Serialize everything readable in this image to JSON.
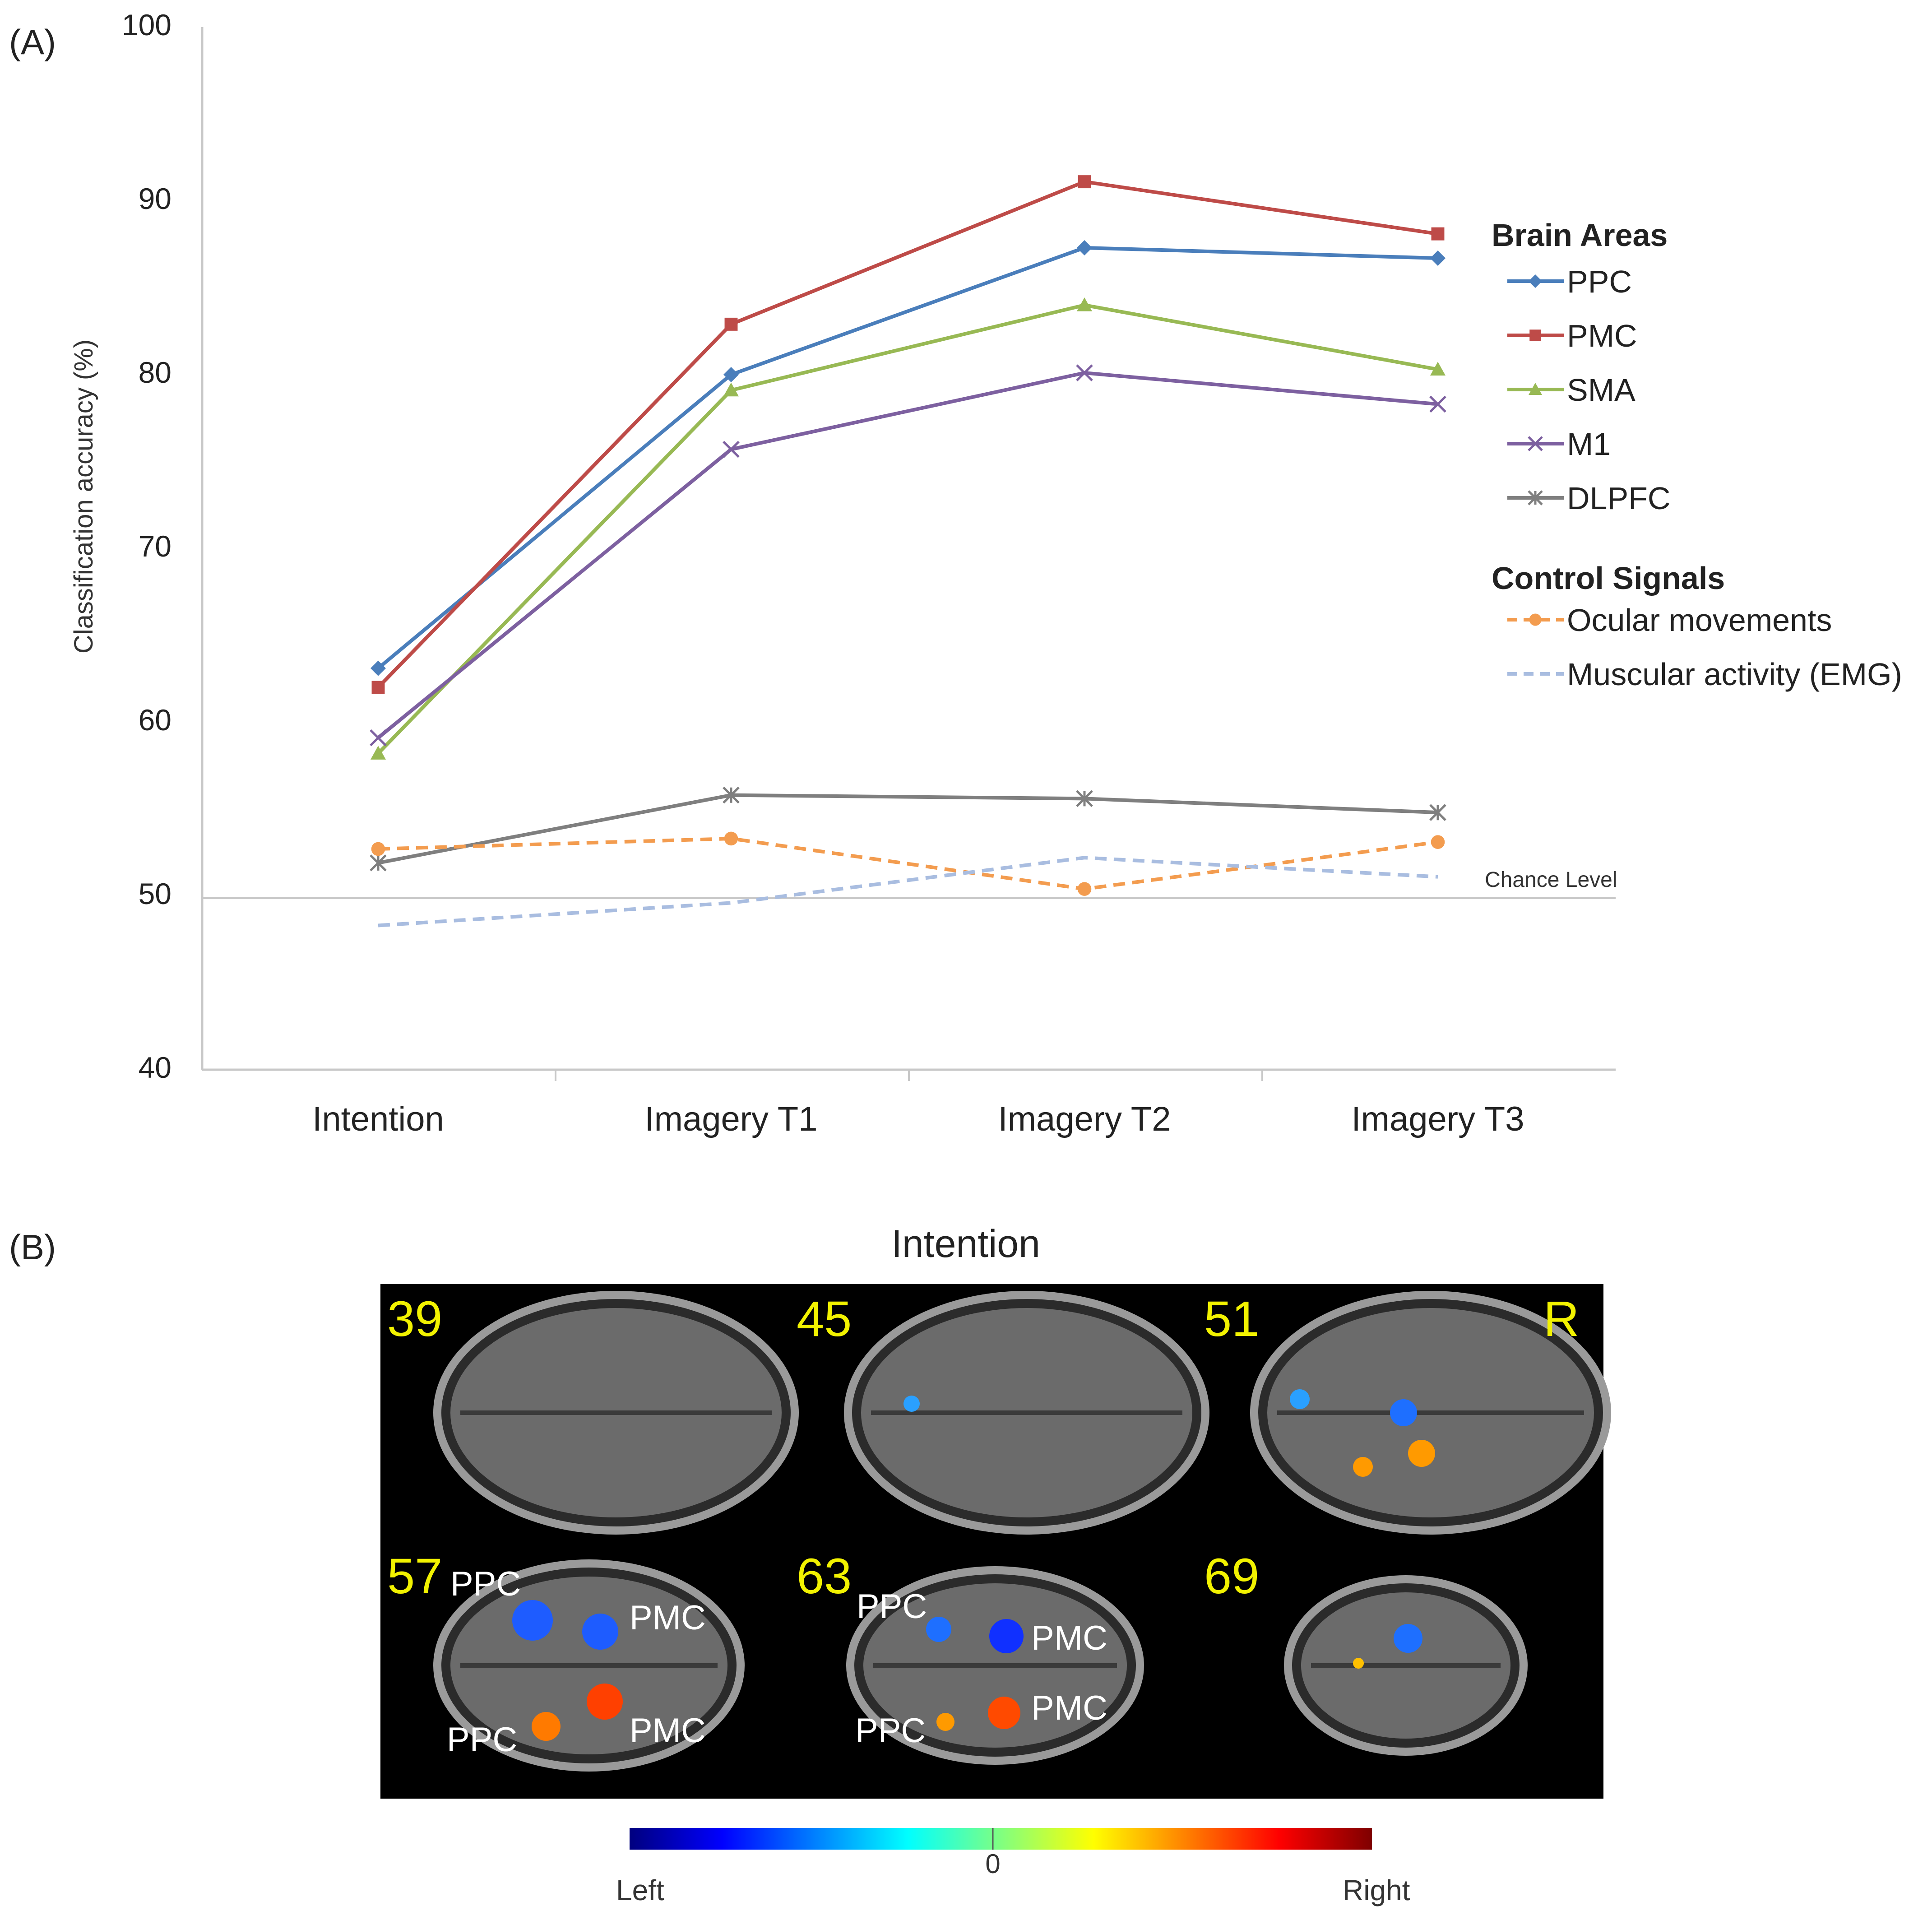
{
  "panel_a": {
    "label": "(A)"
  },
  "panel_b": {
    "label": "(B)",
    "title": "Intention",
    "orientation_label": "R",
    "slices": [
      {
        "number": "39",
        "labels": []
      },
      {
        "number": "45",
        "labels": []
      },
      {
        "number": "51",
        "labels": []
      },
      {
        "number": "57",
        "labels": [
          "PPC",
          "PMC",
          "PPC",
          "PMC"
        ]
      },
      {
        "number": "63",
        "labels": [
          "PPC",
          "PMC",
          "PPC",
          "PMC"
        ]
      },
      {
        "number": "69",
        "labels": []
      }
    ],
    "colorbar": {
      "left_label": "Left",
      "center_label": "0",
      "right_label": "Right",
      "colors": [
        "#00007f",
        "#0000ff",
        "#0080ff",
        "#00ffff",
        "#80ff80",
        "#ffff00",
        "#ff8000",
        "#ff0000",
        "#7f0000"
      ]
    }
  },
  "chart_data": {
    "type": "line",
    "categories": [
      "Intention",
      "Imagery T1",
      "Imagery T2",
      "Imagery T3"
    ],
    "ylabel": "Classification accuracy (%)",
    "xlabel": "",
    "ylim": [
      40,
      100
    ],
    "yticks": [
      "40",
      "50",
      "60",
      "70",
      "80",
      "90",
      "100"
    ],
    "legend_groups": [
      {
        "title": "Brain Areas",
        "entries": [
          "PPC",
          "PMC",
          "SMA",
          "M1",
          "DLPFC"
        ]
      },
      {
        "title": "Control Signals",
        "entries": [
          "Ocular movements",
          "Muscular activity (EMG)"
        ]
      }
    ],
    "series": [
      {
        "name": "PPC",
        "color": "#4a7ebb",
        "marker": "diamond",
        "dash": false,
        "values": [
          63.1,
          80.0,
          87.3,
          86.7
        ]
      },
      {
        "name": "PMC",
        "color": "#be4b48",
        "marker": "square",
        "dash": false,
        "values": [
          62.0,
          82.9,
          91.1,
          88.1
        ]
      },
      {
        "name": "SMA",
        "color": "#98b954",
        "marker": "triangle",
        "dash": false,
        "values": [
          58.2,
          79.1,
          84.0,
          80.3
        ]
      },
      {
        "name": "M1",
        "color": "#7d60a0",
        "marker": "x",
        "dash": false,
        "values": [
          59.1,
          75.7,
          80.1,
          78.3
        ]
      },
      {
        "name": "DLPFC",
        "color": "#7f7f7f",
        "marker": "star",
        "dash": false,
        "values": [
          51.9,
          55.8,
          55.6,
          54.8
        ]
      },
      {
        "name": "Ocular movements",
        "color": "#f39c4f",
        "marker": "circle",
        "dash": true,
        "values": [
          52.7,
          53.3,
          50.4,
          53.1
        ]
      },
      {
        "name": "Muscular activity (EMG)",
        "color": "#a9bde0",
        "marker": "none",
        "dash": true,
        "values": [
          48.3,
          49.6,
          52.2,
          51.1
        ]
      }
    ],
    "reference_line": {
      "value": 50,
      "label": "Chance Level"
    }
  }
}
